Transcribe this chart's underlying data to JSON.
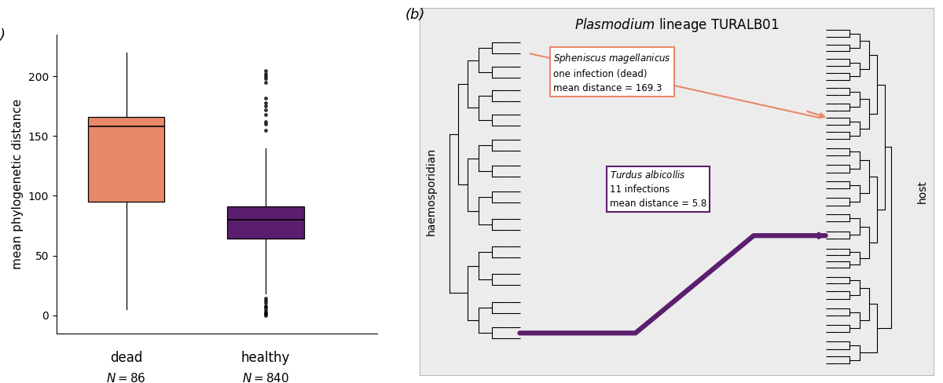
{
  "panel_a": {
    "ylabel": "mean phylogenetic distance",
    "dead": {
      "color": "#E8896A",
      "median": 158,
      "q1": 95,
      "q3": 166,
      "whisker_low": 5,
      "whisker_high": 220,
      "fliers": []
    },
    "healthy": {
      "color": "#5B1E6E",
      "median": 80,
      "q1": 64,
      "q3": 91,
      "whisker_low": 18,
      "whisker_high": 140,
      "fliers_high": [
        155,
        160,
        162,
        168,
        172,
        175,
        178,
        182,
        195,
        198,
        200,
        202,
        205
      ],
      "fliers_low": [
        0,
        1,
        2,
        3,
        5,
        7,
        8,
        10,
        12,
        14
      ]
    },
    "ylim": [
      -15,
      235
    ],
    "yticks": [
      0,
      50,
      100,
      150,
      200
    ]
  },
  "panel_b": {
    "bg_color": "#ECECEC",
    "title_nonitalic": " lineage TURALB01",
    "orange_color": "#E8896A",
    "purple_color": "#5B1E6E"
  }
}
